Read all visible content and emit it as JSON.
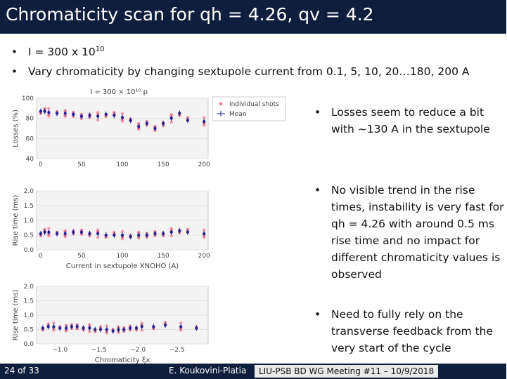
{
  "slide": {
    "title": "Chromaticity scan for qh = 4.26, qv = 4.2",
    "bullets": [
      {
        "base": "I = 300 x 10",
        "sup": "10"
      },
      {
        "text": "Vary chromaticity by changing sextupole current from 0.1, 5, 10, 20…180, 200 A"
      }
    ],
    "right_bullets": [
      "Losses seem to reduce a bit with ~130 A in the sextupole",
      "No visible trend in the rise times, instability is very fast for qh = 4.26 with around 0.5 ms rise time and no impact for different chromaticity values is observed",
      "Need to fully rely on the transverse feedback from the very start of the cycle"
    ],
    "bullet_glyph": "•"
  },
  "footer": {
    "page": "24 of 33",
    "author": "E. Koukovini-Platia",
    "meeting": "LIU-PSB BD WG Meeting #11 – 10/9/2018"
  },
  "colors": {
    "navy": "#0e1f3d",
    "shots": "#e88a98",
    "mean": "#1d1f8a"
  },
  "chart_data": [
    {
      "type": "scatter",
      "title": "I = 300 × 10¹⁰ p",
      "xlabel": "",
      "ylabel": "Losses (%)",
      "xlim": [
        -5,
        205
      ],
      "ylim": [
        40,
        100
      ],
      "xticks": [
        "0",
        "50",
        "100",
        "150",
        "200"
      ],
      "yticks": [
        "40",
        "60",
        "80",
        "100"
      ],
      "legend": [
        "Individual shots",
        "Mean"
      ],
      "legend_position": "top-right",
      "x": [
        0.1,
        5,
        10,
        20,
        30,
        40,
        50,
        60,
        70,
        80,
        90,
        100,
        110,
        120,
        130,
        140,
        150,
        160,
        170,
        180,
        200
      ],
      "series": [
        {
          "name": "Mean",
          "values": [
            87,
            87,
            86,
            85,
            85,
            84,
            82,
            83,
            82,
            84,
            83,
            81,
            78,
            72,
            75,
            70,
            75,
            80,
            85,
            78,
            77
          ]
        }
      ]
    },
    {
      "type": "scatter",
      "xlabel": "Current in sextupole XNOHO (A)",
      "ylabel": "Rise time (ms)",
      "xlim": [
        -5,
        205
      ],
      "ylim": [
        0,
        2.0
      ],
      "xticks": [
        "0",
        "50",
        "100",
        "150",
        "200"
      ],
      "yticks": [
        "0.0",
        "0.5",
        "1.0",
        "1.5",
        "2.0"
      ],
      "x": [
        0.1,
        5,
        10,
        20,
        30,
        40,
        50,
        60,
        70,
        80,
        90,
        100,
        110,
        120,
        130,
        140,
        150,
        160,
        170,
        180,
        200
      ],
      "series": [
        {
          "name": "Mean",
          "values": [
            0.55,
            0.6,
            0.6,
            0.55,
            0.55,
            0.6,
            0.6,
            0.55,
            0.55,
            0.5,
            0.5,
            0.5,
            0.45,
            0.5,
            0.5,
            0.55,
            0.55,
            0.6,
            0.65,
            0.6,
            0.55
          ]
        }
      ]
    },
    {
      "type": "scatter",
      "xlabel": "Chromaticity ξx",
      "ylabel": "Rise time (ms)",
      "xlim": [
        -0.7,
        -2.9
      ],
      "ylim": [
        0,
        2.0
      ],
      "xticks": [
        "−1.0",
        "−1.5",
        "−2.0",
        "−2.5"
      ],
      "yticks": [
        "0.0",
        "0.5",
        "1.0",
        "1.5",
        "2.0"
      ],
      "x": [
        -0.78,
        -0.85,
        -0.92,
        -1.0,
        -1.08,
        -1.15,
        -1.22,
        -1.3,
        -1.38,
        -1.45,
        -1.52,
        -1.6,
        -1.68,
        -1.75,
        -1.82,
        -1.9,
        -1.98,
        -2.05,
        -2.2,
        -2.35,
        -2.55,
        -2.75
      ],
      "series": [
        {
          "name": "Mean",
          "values": [
            0.55,
            0.6,
            0.6,
            0.55,
            0.55,
            0.6,
            0.6,
            0.55,
            0.55,
            0.5,
            0.5,
            0.5,
            0.45,
            0.5,
            0.5,
            0.55,
            0.55,
            0.6,
            0.6,
            0.65,
            0.6,
            0.55
          ]
        }
      ]
    }
  ]
}
